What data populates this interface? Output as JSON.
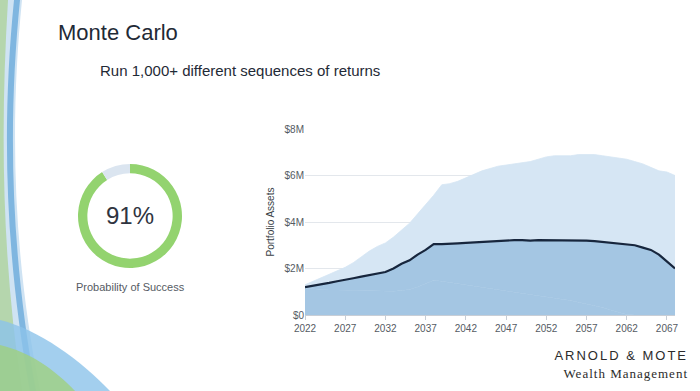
{
  "slide": {
    "title": "Monte Carlo",
    "subtitle": "Run 1,000+ different sequences of returns",
    "logo": [
      "ARNOLD & MOTE",
      "Wealth Management"
    ]
  },
  "chart_data": [
    {
      "type": "pie",
      "title": "Probability of Success",
      "annotation": "91%",
      "values": [
        91,
        9
      ],
      "colors": [
        "#93d36f",
        "#dbe5f0"
      ]
    },
    {
      "type": "area",
      "ylabel": "Portfolio Assets",
      "x": [
        2022,
        2023,
        2024,
        2025,
        2026,
        2027,
        2028,
        2029,
        2030,
        2031,
        2032,
        2033,
        2034,
        2035,
        2036,
        2037,
        2038,
        2039,
        2040,
        2041,
        2042,
        2043,
        2044,
        2045,
        2046,
        2047,
        2048,
        2049,
        2050,
        2051,
        2052,
        2053,
        2054,
        2055,
        2056,
        2057,
        2058,
        2059,
        2060,
        2061,
        2062,
        2063,
        2064,
        2065,
        2066,
        2067,
        2068
      ],
      "series": [
        {
          "color": "#a4c6e3",
          "values": [
            1150000,
            1120000,
            1100000,
            1080000,
            1070000,
            1060000,
            1050000,
            1050000,
            1040000,
            1020000,
            1000000,
            1020000,
            1050000,
            1100000,
            1200000,
            1350000,
            1500000,
            1450000,
            1400000,
            1350000,
            1300000,
            1250000,
            1200000,
            1150000,
            1100000,
            1050000,
            1000000,
            950000,
            900000,
            850000,
            800000,
            750000,
            700000,
            620000,
            550000,
            480000,
            400000,
            320000,
            220000,
            120000,
            20000,
            0,
            0,
            0,
            0,
            0,
            0
          ]
        },
        {
          "color": "#17263d",
          "values": [
            1200000,
            1250000,
            1300000,
            1380000,
            1450000,
            1500000,
            1580000,
            1650000,
            1720000,
            1800000,
            1850000,
            2000000,
            2200000,
            2350000,
            2600000,
            2800000,
            3050000,
            3050000,
            3080000,
            3080000,
            3100000,
            3120000,
            3150000,
            3180000,
            3200000,
            3200000,
            3220000,
            3220000,
            3200000,
            3220000,
            3220000,
            3220000,
            3200000,
            3200000,
            3200000,
            3200000,
            3180000,
            3150000,
            3100000,
            3080000,
            3050000,
            3000000,
            2900000,
            2800000,
            2600000,
            2300000,
            2000000
          ]
        },
        {
          "color": "#d6e6f4",
          "values": [
            1300000,
            1450000,
            1600000,
            1750000,
            1900000,
            2050000,
            2250000,
            2500000,
            2750000,
            2950000,
            3100000,
            3350000,
            3650000,
            3950000,
            4350000,
            4750000,
            5150000,
            5600000,
            5650000,
            5750000,
            5900000,
            6050000,
            6200000,
            6300000,
            6400000,
            6450000,
            6500000,
            6550000,
            6600000,
            6700000,
            6800000,
            6850000,
            6850000,
            6850000,
            6900000,
            6900000,
            6900000,
            6850000,
            6800000,
            6750000,
            6700000,
            6600000,
            6500000,
            6350000,
            6200000,
            6150000,
            6000000
          ]
        }
      ],
      "xlim": [
        2022,
        2068
      ],
      "xticks": [
        2022,
        2027,
        2032,
        2037,
        2042,
        2047,
        2052,
        2057,
        2062,
        2067
      ],
      "ylim": [
        0,
        8000000
      ],
      "yticks": [
        {
          "value": 0,
          "label": "$0"
        },
        {
          "value": 2000000,
          "label": "$2M"
        },
        {
          "value": 4000000,
          "label": "$4M"
        },
        {
          "value": 6000000,
          "label": "$6M"
        },
        {
          "value": 8000000,
          "label": "$8M"
        }
      ],
      "grid": true
    }
  ]
}
